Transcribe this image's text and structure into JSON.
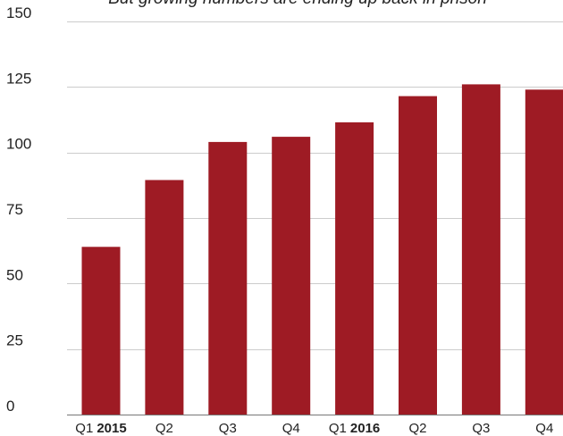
{
  "chart_data": {
    "type": "bar",
    "subtitle": "But growing numbers are ending up back in prison",
    "categories": [
      {
        "label": "Q1",
        "year": "2015"
      },
      {
        "label": "Q2",
        "year": ""
      },
      {
        "label": "Q3",
        "year": ""
      },
      {
        "label": "Q4",
        "year": ""
      },
      {
        "label": "Q1",
        "year": "2016"
      },
      {
        "label": "Q2",
        "year": ""
      },
      {
        "label": "Q3",
        "year": ""
      },
      {
        "label": "Q4",
        "year": ""
      }
    ],
    "values": [
      64,
      89.5,
      104,
      106,
      111.5,
      121.5,
      126,
      124
    ],
    "ylim": [
      0,
      150
    ],
    "yticks": [
      "0",
      "25",
      "50",
      "75",
      "100",
      "125",
      "150"
    ],
    "grid": true,
    "legend": "none",
    "bar_color": "#9e1b24",
    "grid_color": "#cccccc",
    "text_color": "#222222"
  }
}
